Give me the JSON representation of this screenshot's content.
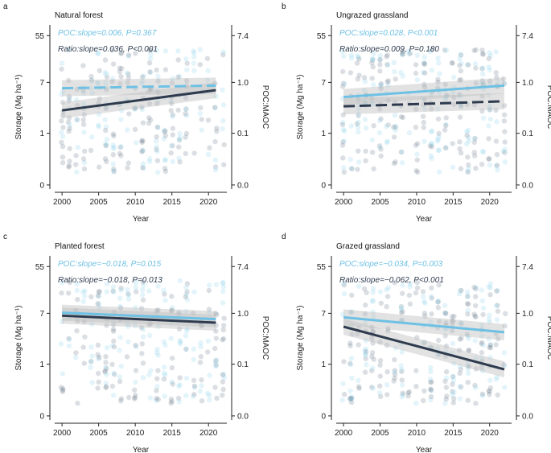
{
  "colors": {
    "poc": "#6ec1e4",
    "ratio": "#2e3b4e",
    "poc_points": "#8fd3ec",
    "ratio_points": "#5c6f80",
    "band": "#bfbfbf"
  },
  "chart_data": [
    {
      "type": "scatter",
      "letter": "a",
      "title": "Natural forest",
      "xlabel": "Year",
      "ylabel": "Storage (Mg ha⁻¹)",
      "y2label": "POC:MAOC",
      "xlim": [
        1999,
        2022.5
      ],
      "xticks": [
        "2000",
        "2005",
        "2010",
        "2015",
        "2020"
      ],
      "yticks_left": [
        "0",
        "1",
        "7",
        "55"
      ],
      "yticks_right": [
        "0.0",
        "0.1",
        "1.0",
        "7.4"
      ],
      "stats": {
        "poc": "POC:slope=0.006, P=0.367",
        "ratio": "Ratio:slope=0.036, P<0.001"
      },
      "series": [
        {
          "name": "POC",
          "dashed": true,
          "x": [
            2000,
            2021
          ],
          "y": [
            5.6,
            6.2
          ]
        },
        {
          "name": "Ratio",
          "dashed": false,
          "x": [
            2000,
            2021
          ],
          "y": [
            2.4,
            5.2
          ]
        }
      ]
    },
    {
      "type": "scatter",
      "letter": "b",
      "title": "Ungrazed grassland",
      "xlabel": "Year",
      "ylabel": "Storage (Mg ha⁻¹)",
      "y2label": "POC:MAOC",
      "xlim": [
        1999,
        2023
      ],
      "xticks": [
        "2000",
        "2005",
        "2010",
        "2015",
        "2020"
      ],
      "yticks_left": [
        "0",
        "1",
        "7",
        "55"
      ],
      "yticks_right": [
        "0.0",
        "0.1",
        "1.0",
        "7.4"
      ],
      "stats": {
        "poc": "POC:slope=0.028, P<0.001",
        "ratio": "Ratio:slope=0.009, P=0.180"
      },
      "series": [
        {
          "name": "POC",
          "dashed": false,
          "x": [
            2000,
            2022
          ],
          "y": [
            4.0,
            6.2
          ]
        },
        {
          "name": "Ratio",
          "dashed": true,
          "x": [
            2000,
            2022
          ],
          "y": [
            2.8,
            3.4
          ]
        }
      ]
    },
    {
      "type": "scatter",
      "letter": "c",
      "title": "Planted forest",
      "xlabel": "Year",
      "ylabel": "Storage (Mg ha⁻¹)",
      "y2label": "POC:MAOC",
      "xlim": [
        1999,
        2022.5
      ],
      "xticks": [
        "2000",
        "2005",
        "2010",
        "2015",
        "2020"
      ],
      "yticks_left": [
        "0",
        "1",
        "7",
        "55"
      ],
      "yticks_right": [
        "0.0",
        "0.1",
        "1.0",
        "7.4"
      ],
      "stats": {
        "poc": "POC:slope=−0.018, P=0.015",
        "ratio": "Ratio:slope=−0.018, P=0.013"
      },
      "series": [
        {
          "name": "POC",
          "dashed": false,
          "x": [
            2000,
            2021
          ],
          "y": [
            7.2,
            5.6
          ]
        },
        {
          "name": "Ratio",
          "dashed": false,
          "x": [
            2000,
            2021
          ],
          "y": [
            6.4,
            4.9
          ]
        }
      ]
    },
    {
      "type": "scatter",
      "letter": "d",
      "title": "Grazed grassland",
      "xlabel": "Year",
      "ylabel": "Storage (Mg ha⁻¹)",
      "y2label": "POC:MAOC",
      "xlim": [
        1999,
        2023
      ],
      "xticks": [
        "2000",
        "2005",
        "2010",
        "2015",
        "2020"
      ],
      "yticks_left": [
        "0",
        "1",
        "7",
        "55"
      ],
      "yticks_right": [
        "0.0",
        "0.1",
        "1.0",
        "7.4"
      ],
      "stats": {
        "poc": "POC:slope=−0.034, P=0.003",
        "ratio": "Ratio:slope=−0.062, P<0.001"
      },
      "series": [
        {
          "name": "POC",
          "dashed": false,
          "x": [
            2000,
            2022
          ],
          "y": [
            6.0,
            3.4
          ]
        },
        {
          "name": "Ratio",
          "dashed": false,
          "x": [
            2000,
            2022
          ],
          "y": [
            4.2,
            0.9
          ]
        }
      ]
    }
  ]
}
